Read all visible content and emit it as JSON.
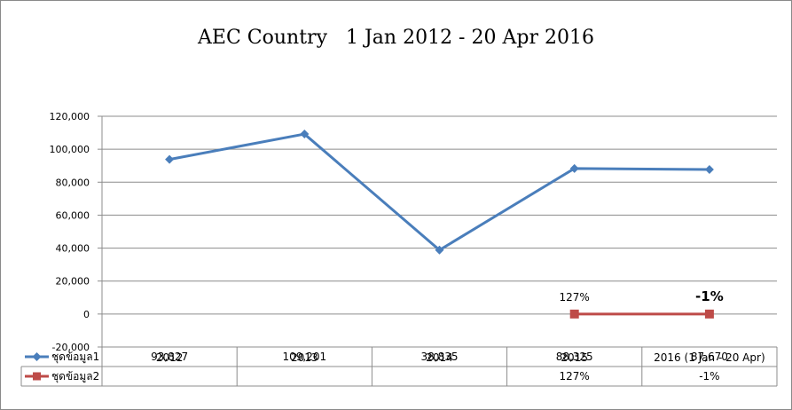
{
  "chart_data": {
    "type": "line",
    "title": "AEC Country   1 Jan 2012 - 20 Apr 2016",
    "categories": [
      "2012",
      "2013",
      "2014",
      "2015",
      "2016 (1 Jan - 20 Apr)"
    ],
    "ylim": [
      -20000,
      120000
    ],
    "yticks": [
      -20000,
      0,
      20000,
      40000,
      60000,
      80000,
      100000,
      120000
    ],
    "ytick_labels": [
      "-20,000",
      "0",
      "20,000",
      "40,000",
      "60,000",
      "80,000",
      "100,000",
      "120,000"
    ],
    "grid": true,
    "legend": "data-table-bottom",
    "series": [
      {
        "name": "ชุดข้อมูล1",
        "color": "#4a7ebb",
        "marker": "diamond",
        "values": [
          93827,
          109201,
          38835,
          88325,
          87670
        ],
        "table_labels": [
          "93,827",
          "109,201",
          "38,835",
          "88,325",
          "87,670"
        ]
      },
      {
        "name": "ชุดข้อมูล2",
        "color": "#be4b48",
        "marker": "square",
        "values": [
          null,
          null,
          null,
          0,
          0
        ],
        "table_labels": [
          "",
          "",
          "",
          "127%",
          "-1%"
        ]
      }
    ],
    "annotations": [
      {
        "category_index": 3,
        "text": "127%",
        "bold": false
      },
      {
        "category_index": 4,
        "text": "-1%",
        "bold": true
      }
    ]
  }
}
